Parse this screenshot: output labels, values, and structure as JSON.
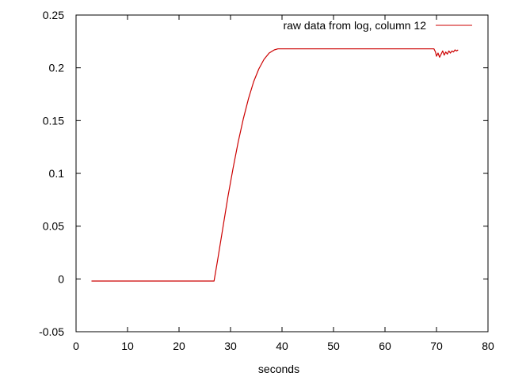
{
  "chart_data": {
    "type": "line",
    "title": "",
    "xlabel": "seconds",
    "ylabel": "",
    "xlim": [
      0,
      80
    ],
    "ylim": [
      -0.05,
      0.25
    ],
    "x_ticks": [
      0,
      10,
      20,
      30,
      40,
      50,
      60,
      70,
      80
    ],
    "x_tick_labels": [
      "0",
      "10",
      "20",
      "30",
      "40",
      "50",
      "60",
      "70",
      "80"
    ],
    "y_ticks": [
      -0.05,
      0,
      0.05,
      0.1,
      0.15,
      0.2,
      0.25
    ],
    "y_tick_labels": [
      "-0.05",
      "0",
      "0.05",
      "0.1",
      "0.15",
      "0.2",
      "0.25"
    ],
    "grid": false,
    "legend_position": "top-right",
    "series": [
      {
        "name": "raw data from log, column 12",
        "color": "#cc0000",
        "x": [
          3,
          10,
          20,
          26.8,
          27.5,
          28.5,
          29.5,
          30.5,
          31.5,
          32.5,
          33.5,
          34.5,
          35.5,
          36.5,
          37.5,
          38.5,
          39.2,
          45,
          55,
          65,
          69.5,
          69.8,
          70.0,
          70.3,
          70.6,
          70.9,
          71.2,
          71.5,
          71.8,
          72.1,
          72.4,
          72.7,
          73.0,
          73.3,
          73.6,
          73.9,
          74.2
        ],
        "y": [
          -0.002,
          -0.002,
          -0.002,
          -0.002,
          0.018,
          0.048,
          0.078,
          0.105,
          0.13,
          0.152,
          0.171,
          0.187,
          0.199,
          0.208,
          0.214,
          0.217,
          0.218,
          0.218,
          0.218,
          0.218,
          0.218,
          0.215,
          0.211,
          0.214,
          0.21,
          0.213,
          0.216,
          0.212,
          0.215,
          0.213,
          0.216,
          0.214,
          0.216,
          0.215,
          0.217,
          0.216,
          0.217
        ]
      }
    ]
  }
}
